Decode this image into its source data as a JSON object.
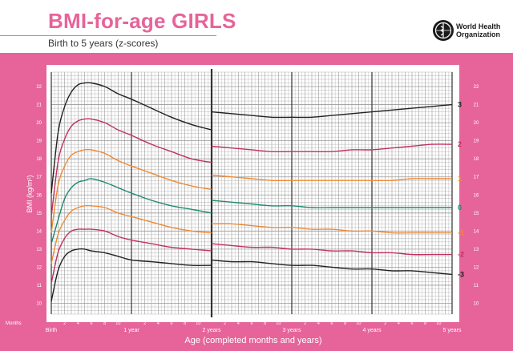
{
  "header": {
    "title": "BMI-for-age GIRLS",
    "subtitle": "Birth to 5 years (z-scores)",
    "org_name": "World Health Organization",
    "logo_icon": "who-emblem-icon"
  },
  "colors": {
    "pink_frame": "#e6649a",
    "grid_line": "#9a9a9a",
    "curve_3": "#222222",
    "curve_2": "#c2315e",
    "curve_1": "#ee8a35",
    "curve_0": "#1e8a70",
    "curve_neg1": "#ee8a35",
    "curve_neg2": "#c2315e",
    "curve_neg3": "#222222"
  },
  "chart_data": {
    "type": "line",
    "title": "BMI-for-age GIRLS",
    "subtitle": "Birth to 5 years (z-scores)",
    "xlabel": "Age (completed months and years)",
    "ylabel": "BMI (kg/m²)",
    "x_unit": "months",
    "xlim": [
      0,
      60
    ],
    "ylim": [
      9.4,
      22.8
    ],
    "y_ticks": [
      10,
      11,
      12,
      13,
      14,
      15,
      16,
      17,
      18,
      19,
      20,
      21,
      22
    ],
    "x_axis_row_label": "Months",
    "x_tick_labels": [
      {
        "x": 0,
        "label": "Birth"
      },
      {
        "x": 2,
        "label": "2"
      },
      {
        "x": 4,
        "label": "4"
      },
      {
        "x": 6,
        "label": "6"
      },
      {
        "x": 8,
        "label": "8"
      },
      {
        "x": 10,
        "label": "10"
      },
      {
        "x": 12,
        "label": "1 year"
      },
      {
        "x": 14,
        "label": "2"
      },
      {
        "x": 16,
        "label": "4"
      },
      {
        "x": 18,
        "label": "6"
      },
      {
        "x": 20,
        "label": "8"
      },
      {
        "x": 22,
        "label": "10"
      },
      {
        "x": 24,
        "label": "2 years"
      },
      {
        "x": 26,
        "label": "2"
      },
      {
        "x": 28,
        "label": "4"
      },
      {
        "x": 30,
        "label": "6"
      },
      {
        "x": 32,
        "label": "8"
      },
      {
        "x": 34,
        "label": "10"
      },
      {
        "x": 36,
        "label": "3 years"
      },
      {
        "x": 38,
        "label": "2"
      },
      {
        "x": 40,
        "label": "4"
      },
      {
        "x": 42,
        "label": "6"
      },
      {
        "x": 44,
        "label": "8"
      },
      {
        "x": 46,
        "label": "10"
      },
      {
        "x": 48,
        "label": "4 years"
      },
      {
        "x": 50,
        "label": "2"
      },
      {
        "x": 52,
        "label": "4"
      },
      {
        "x": 54,
        "label": "6"
      },
      {
        "x": 56,
        "label": "8"
      },
      {
        "x": 58,
        "label": "10"
      },
      {
        "x": 60,
        "label": "5 years"
      }
    ],
    "grid": true,
    "series": [
      {
        "name": "3",
        "color": "#222222",
        "x": [
          0,
          1,
          2,
          3,
          4,
          5,
          6,
          8,
          10,
          12,
          15,
          18,
          21,
          24,
          24,
          27,
          30,
          33,
          36,
          39,
          42,
          45,
          48,
          51,
          54,
          57,
          60
        ],
        "y": [
          16.1,
          19.4,
          20.9,
          21.7,
          22.1,
          22.2,
          22.2,
          22.0,
          21.6,
          21.3,
          20.8,
          20.3,
          19.9,
          19.6,
          20.6,
          20.5,
          20.4,
          20.3,
          20.3,
          20.3,
          20.4,
          20.5,
          20.6,
          20.7,
          20.8,
          20.9,
          21.0
        ]
      },
      {
        "name": "2",
        "color": "#c2315e",
        "x": [
          0,
          1,
          2,
          3,
          4,
          5,
          6,
          8,
          10,
          12,
          15,
          18,
          21,
          24,
          24,
          27,
          30,
          33,
          36,
          39,
          42,
          45,
          48,
          51,
          54,
          57,
          60
        ],
        "y": [
          14.8,
          17.8,
          19.1,
          19.8,
          20.1,
          20.2,
          20.2,
          20.0,
          19.6,
          19.3,
          18.8,
          18.4,
          18.0,
          17.8,
          18.7,
          18.6,
          18.5,
          18.4,
          18.4,
          18.4,
          18.4,
          18.5,
          18.5,
          18.6,
          18.7,
          18.8,
          18.8
        ]
      },
      {
        "name": "1",
        "color": "#ee8a35",
        "x": [
          0,
          1,
          2,
          3,
          4,
          5,
          6,
          8,
          10,
          12,
          15,
          18,
          21,
          24,
          24,
          27,
          30,
          33,
          36,
          39,
          42,
          45,
          48,
          51,
          54,
          57,
          60
        ],
        "y": [
          13.9,
          16.5,
          17.6,
          18.2,
          18.4,
          18.5,
          18.5,
          18.3,
          17.9,
          17.6,
          17.2,
          16.8,
          16.5,
          16.3,
          17.1,
          17.0,
          16.9,
          16.8,
          16.8,
          16.8,
          16.8,
          16.8,
          16.8,
          16.8,
          16.9,
          16.9,
          16.9
        ]
      },
      {
        "name": "0",
        "color": "#1e8a70",
        "x": [
          0,
          1,
          2,
          3,
          4,
          5,
          6,
          8,
          10,
          12,
          15,
          18,
          21,
          24,
          24,
          27,
          30,
          33,
          36,
          39,
          42,
          45,
          48,
          51,
          54,
          57,
          60
        ],
        "y": [
          13.3,
          14.6,
          15.8,
          16.4,
          16.7,
          16.8,
          16.9,
          16.7,
          16.4,
          16.1,
          15.7,
          15.4,
          15.2,
          15.0,
          15.7,
          15.6,
          15.5,
          15.4,
          15.4,
          15.3,
          15.3,
          15.3,
          15.3,
          15.3,
          15.3,
          15.3,
          15.3
        ]
      },
      {
        "name": "-1",
        "color": "#ee8a35",
        "x": [
          0,
          1,
          2,
          3,
          4,
          5,
          6,
          8,
          10,
          12,
          15,
          18,
          21,
          24,
          24,
          27,
          30,
          33,
          36,
          39,
          42,
          45,
          48,
          51,
          54,
          57,
          60
        ],
        "y": [
          12.2,
          13.8,
          14.6,
          15.1,
          15.3,
          15.4,
          15.4,
          15.3,
          15.0,
          14.8,
          14.5,
          14.2,
          14.0,
          13.9,
          14.4,
          14.4,
          14.3,
          14.2,
          14.2,
          14.1,
          14.1,
          14.0,
          14.0,
          13.9,
          13.9,
          13.9,
          13.9
        ]
      },
      {
        "name": "-2",
        "color": "#c2315e",
        "x": [
          0,
          1,
          2,
          3,
          4,
          5,
          6,
          8,
          10,
          12,
          15,
          18,
          21,
          24,
          24,
          27,
          30,
          33,
          36,
          39,
          42,
          45,
          48,
          51,
          54,
          57,
          60
        ],
        "y": [
          11.1,
          12.8,
          13.6,
          14.0,
          14.1,
          14.1,
          14.1,
          14.0,
          13.7,
          13.5,
          13.3,
          13.1,
          13.0,
          12.9,
          13.3,
          13.2,
          13.1,
          13.1,
          13.0,
          13.0,
          12.9,
          12.9,
          12.8,
          12.8,
          12.7,
          12.7,
          12.7
        ]
      },
      {
        "name": "-3",
        "color": "#222222",
        "x": [
          0,
          1,
          2,
          3,
          4,
          5,
          6,
          8,
          10,
          12,
          15,
          18,
          21,
          24,
          24,
          27,
          30,
          33,
          36,
          39,
          42,
          45,
          48,
          51,
          54,
          57,
          60
        ],
        "y": [
          10.1,
          11.8,
          12.6,
          12.9,
          13.0,
          13.0,
          12.9,
          12.8,
          12.6,
          12.4,
          12.3,
          12.2,
          12.1,
          12.1,
          12.4,
          12.3,
          12.3,
          12.2,
          12.1,
          12.1,
          12.0,
          11.9,
          11.9,
          11.8,
          11.8,
          11.7,
          11.6
        ]
      }
    ]
  }
}
